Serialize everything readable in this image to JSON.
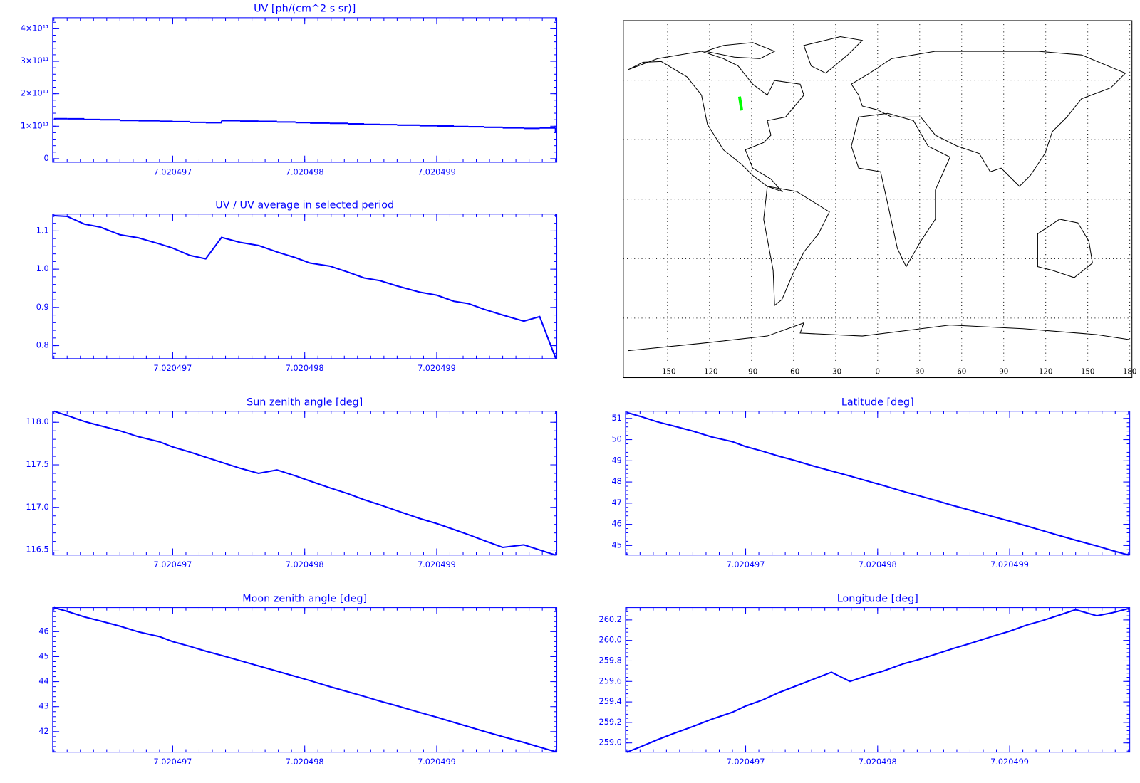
{
  "chart_data": [
    {
      "type": "line",
      "title": "UV [ph/(cm^2 s sr)]",
      "drawstyle": "steps",
      "color": "#0000ff",
      "x": [
        7.0204961,
        7.0204962,
        7.02049633,
        7.02049645,
        7.0204966,
        7.02049674,
        7.0204969,
        7.020497,
        7.02049713,
        7.02049725,
        7.02049737,
        7.02049751,
        7.02049765,
        7.02049779,
        7.02049793,
        7.02049804,
        7.02049819,
        7.02049833,
        7.02049845,
        7.02049857,
        7.0204987,
        7.02049887,
        7.020499,
        7.02049913,
        7.02049924,
        7.02049936,
        7.0204995,
        7.02049966,
        7.02049978,
        7.0204999
      ],
      "values": [
        123100000000,
        122900000000,
        120700000000,
        119900000000,
        117700000000,
        116900000000,
        115100000000,
        113900000000,
        111900000000,
        110900000000,
        117000000000,
        115600000000,
        114700000000,
        112900000000,
        111200000000,
        109700000000,
        108900000000,
        107100000000,
        105500000000,
        104800000000,
        103200000000,
        101500000000,
        100700000000,
        98900000000,
        98300000000,
        96700000000,
        95000000000,
        93300000000,
        94600000000,
        82900000000
      ],
      "xlim": [
        7.02049609,
        7.02049991
      ],
      "xticks": [
        7.020497,
        7.020498,
        7.020499
      ],
      "ylim": [
        -11000000000,
        434000000000
      ],
      "yticks": [
        0,
        {
          "value": 100000000000,
          "label": "1×10¹¹"
        },
        {
          "value": 200000000000,
          "label": "2×10¹¹"
        },
        {
          "value": 300000000000,
          "label": "3×10¹¹"
        },
        {
          "value": 400000000000,
          "label": "4×10¹¹"
        }
      ]
    },
    {
      "type": "line",
      "title": "UV / UV average in selected period",
      "color": "#0000ff",
      "x": [
        7.0204961,
        7.0204962,
        7.02049633,
        7.02049645,
        7.0204966,
        7.02049674,
        7.0204969,
        7.020497,
        7.02049713,
        7.02049725,
        7.02049737,
        7.02049751,
        7.02049765,
        7.02049779,
        7.02049793,
        7.02049804,
        7.02049819,
        7.02049833,
        7.02049845,
        7.02049857,
        7.0204987,
        7.02049887,
        7.020499,
        7.02049913,
        7.02049924,
        7.02049936,
        7.0204995,
        7.02049966,
        7.02049978,
        7.0204999
      ],
      "values": [
        1.14,
        1.138,
        1.118,
        1.11,
        1.09,
        1.082,
        1.066,
        1.055,
        1.036,
        1.027,
        1.083,
        1.07,
        1.062,
        1.045,
        1.03,
        1.016,
        1.008,
        0.992,
        0.977,
        0.97,
        0.956,
        0.94,
        0.932,
        0.916,
        0.91,
        0.895,
        0.88,
        0.864,
        0.876,
        0.768
      ],
      "xlim": [
        7.02049609,
        7.02049991
      ],
      "xticks": [
        7.020497,
        7.020498,
        7.020499
      ],
      "ylim": [
        0.766,
        1.144
      ],
      "yticks": [
        0.8,
        0.9,
        {
          "value": 1,
          "label": "1.0"
        },
        1.1
      ]
    },
    {
      "type": "line",
      "title": "Sun zenith angle [deg]",
      "color": "#0000ff",
      "x": [
        7.0204961,
        7.0204962,
        7.02049633,
        7.02049645,
        7.0204966,
        7.02049674,
        7.0204969,
        7.020497,
        7.02049713,
        7.02049725,
        7.02049737,
        7.02049751,
        7.02049765,
        7.02049779,
        7.02049793,
        7.02049804,
        7.02049819,
        7.02049833,
        7.02049845,
        7.02049857,
        7.0204987,
        7.02049887,
        7.020499,
        7.02049913,
        7.02049924,
        7.02049936,
        7.0204995,
        7.02049966,
        7.02049978,
        7.0204999
      ],
      "values": [
        118.13,
        118.08,
        118.01,
        117.96,
        117.9,
        117.83,
        117.77,
        117.71,
        117.65,
        117.59,
        117.53,
        117.46,
        117.4,
        117.44,
        117.37,
        117.31,
        117.23,
        117.16,
        117.09,
        117.03,
        116.96,
        116.87,
        116.81,
        116.74,
        116.68,
        116.61,
        116.53,
        116.56,
        116.5,
        116.44
      ],
      "xlim": [
        7.02049609,
        7.02049991
      ],
      "xticks": [
        7.020497,
        7.020498,
        7.020499
      ],
      "ylim": [
        116.44,
        118.13
      ],
      "yticks": [
        116.5,
        {
          "value": 117,
          "label": "117.0"
        },
        117.5,
        {
          "value": 118,
          "label": "118.0"
        }
      ]
    },
    {
      "type": "line",
      "title": "Latitude [deg]",
      "color": "#0000ff",
      "x": [
        7.0204961,
        7.0204962,
        7.02049633,
        7.02049645,
        7.0204966,
        7.02049674,
        7.0204969,
        7.020497,
        7.02049713,
        7.02049725,
        7.02049737,
        7.02049751,
        7.02049765,
        7.02049779,
        7.02049793,
        7.02049804,
        7.02049819,
        7.02049833,
        7.02049845,
        7.02049857,
        7.0204987,
        7.02049887,
        7.020499,
        7.02049913,
        7.02049924,
        7.02049936,
        7.0204995,
        7.02049966,
        7.02049978,
        7.0204999
      ],
      "values": [
        51.28,
        51.1,
        50.84,
        50.65,
        50.4,
        50.13,
        49.9,
        49.67,
        49.45,
        49.22,
        49.02,
        48.76,
        48.52,
        48.28,
        48.03,
        47.84,
        47.56,
        47.32,
        47.11,
        46.89,
        46.67,
        46.37,
        46.15,
        45.92,
        45.72,
        45.5,
        45.25,
        44.98,
        44.76,
        44.55
      ],
      "xlim": [
        7.02049609,
        7.02049991
      ],
      "xticks": [
        7.020497,
        7.020498,
        7.020499
      ],
      "ylim": [
        44.55,
        51.34
      ],
      "yticks": [
        45,
        46,
        47,
        48,
        49,
        50,
        51
      ]
    },
    {
      "type": "line",
      "title": "Moon zenith angle [deg]",
      "color": "#0000ff",
      "x": [
        7.0204961,
        7.0204962,
        7.02049633,
        7.02049645,
        7.0204966,
        7.02049674,
        7.0204969,
        7.020497,
        7.02049713,
        7.02049725,
        7.02049737,
        7.02049751,
        7.02049765,
        7.02049779,
        7.02049793,
        7.02049804,
        7.02049819,
        7.02049833,
        7.02049845,
        7.02049857,
        7.0204987,
        7.02049887,
        7.020499,
        7.02049913,
        7.02049924,
        7.02049936,
        7.0204995,
        7.02049966,
        7.02049978,
        7.0204999
      ],
      "values": [
        46.96,
        46.81,
        46.59,
        46.43,
        46.22,
        45.99,
        45.8,
        45.6,
        45.41,
        45.22,
        45.05,
        44.84,
        44.63,
        44.42,
        44.21,
        44.04,
        43.8,
        43.59,
        43.41,
        43.22,
        43.03,
        42.77,
        42.58,
        42.37,
        42.2,
        42.01,
        41.8,
        41.57,
        41.38,
        41.2
      ],
      "xlim": [
        7.02049609,
        7.02049991
      ],
      "xticks": [
        7.020497,
        7.020498,
        7.020499
      ],
      "ylim": [
        41.18,
        46.96
      ],
      "yticks": [
        42,
        43,
        44,
        45,
        46
      ]
    },
    {
      "type": "line",
      "title": "Longitude [deg]",
      "color": "#0000ff",
      "x": [
        7.0204961,
        7.0204962,
        7.02049633,
        7.02049645,
        7.0204966,
        7.02049674,
        7.0204969,
        7.020497,
        7.02049713,
        7.02049725,
        7.02049737,
        7.02049751,
        7.02049765,
        7.02049779,
        7.02049793,
        7.02049804,
        7.02049819,
        7.02049833,
        7.02049845,
        7.02049857,
        7.0204987,
        7.02049887,
        7.020499,
        7.02049913,
        7.02049924,
        7.02049936,
        7.0204995,
        7.02049966,
        7.02049978,
        7.0204999
      ],
      "values": [
        258.91,
        258.96,
        259.03,
        259.09,
        259.16,
        259.23,
        259.3,
        259.36,
        259.42,
        259.49,
        259.55,
        259.62,
        259.69,
        259.6,
        259.66,
        259.7,
        259.77,
        259.82,
        259.87,
        259.92,
        259.97,
        260.04,
        260.09,
        260.15,
        260.19,
        260.24,
        260.3,
        260.24,
        260.27,
        260.31
      ],
      "xlim": [
        7.02049609,
        7.02049991
      ],
      "xticks": [
        7.020497,
        7.020498,
        7.020499
      ],
      "ylim": [
        258.91,
        260.32
      ],
      "yticks": [
        {
          "value": 259,
          "label": "259.0"
        },
        259.2,
        259.4,
        259.6,
        259.8,
        {
          "value": 260,
          "label": "260.0"
        },
        260.2
      ]
    },
    {
      "type": "map",
      "xlim": [
        -180,
        180
      ],
      "xticks": [
        -150,
        -120,
        -90,
        -60,
        -30,
        0,
        30,
        60,
        90,
        120,
        150,
        180
      ],
      "grid": true
    }
  ]
}
